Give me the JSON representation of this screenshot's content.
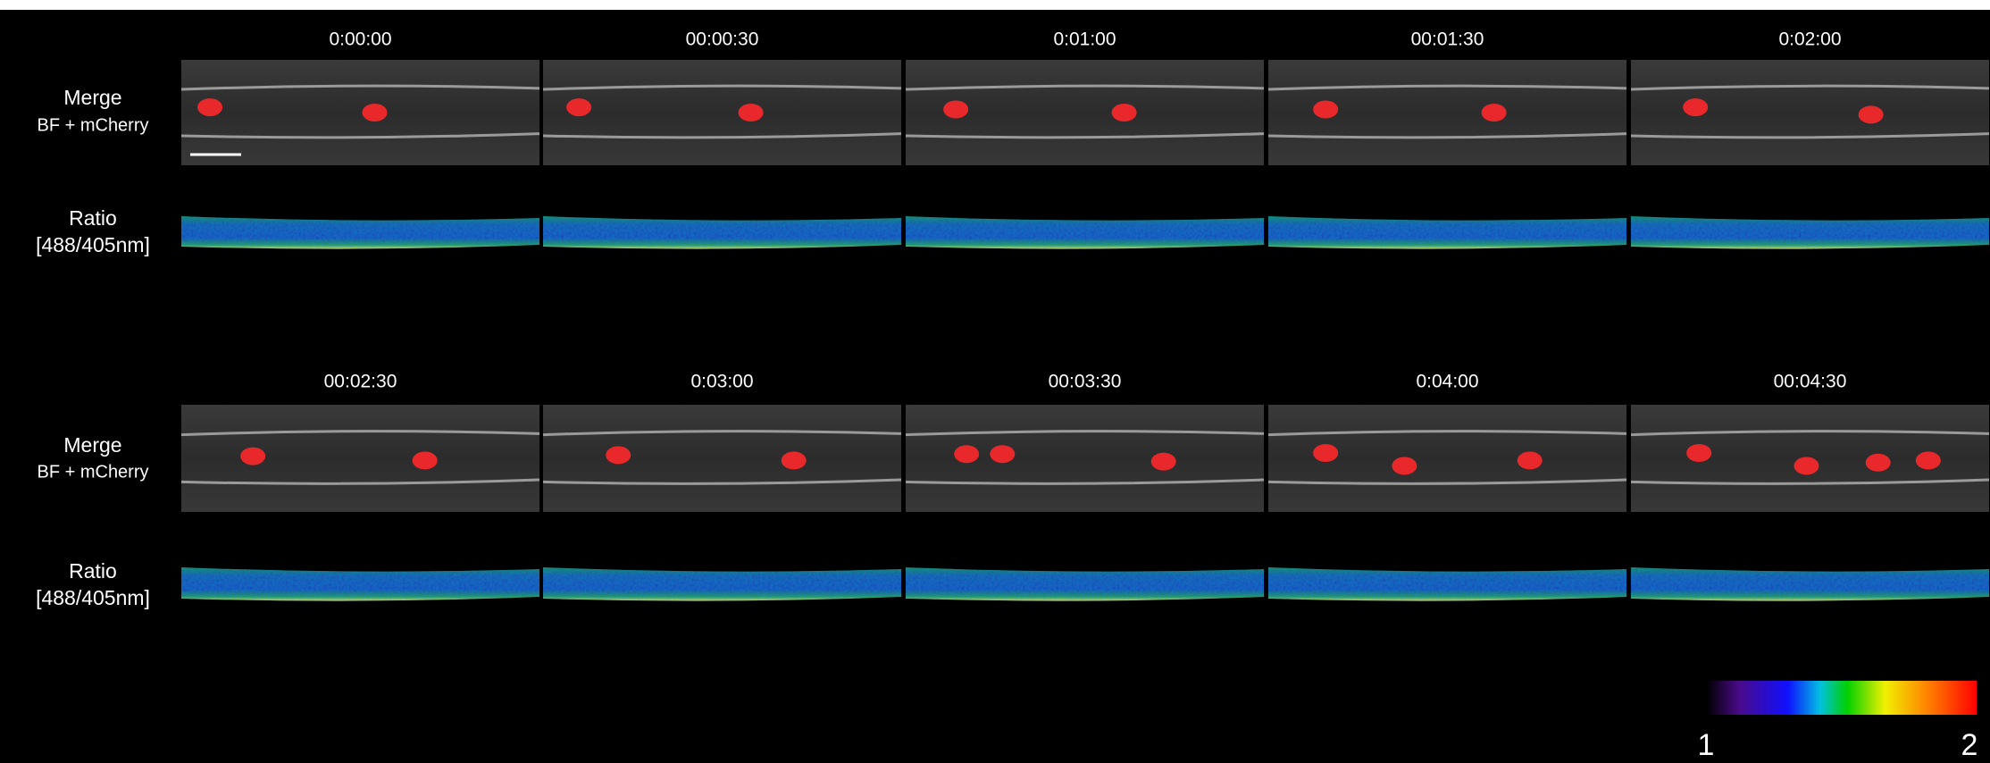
{
  "timepoints": [
    "0:00:00",
    "00:00:30",
    "0:01:00",
    "00:01:30",
    "0:02:00",
    "00:02:30",
    "0:03:00",
    "00:03:30",
    "0:04:00",
    "00:04:30"
  ],
  "row_labels": {
    "merge": {
      "title": "Merge",
      "subtitle": "BF + mCherry"
    },
    "ratio": {
      "title": "Ratio",
      "subtitle": "[488/405nm]"
    }
  },
  "colorbar": {
    "min": 1,
    "max": 2
  }
}
